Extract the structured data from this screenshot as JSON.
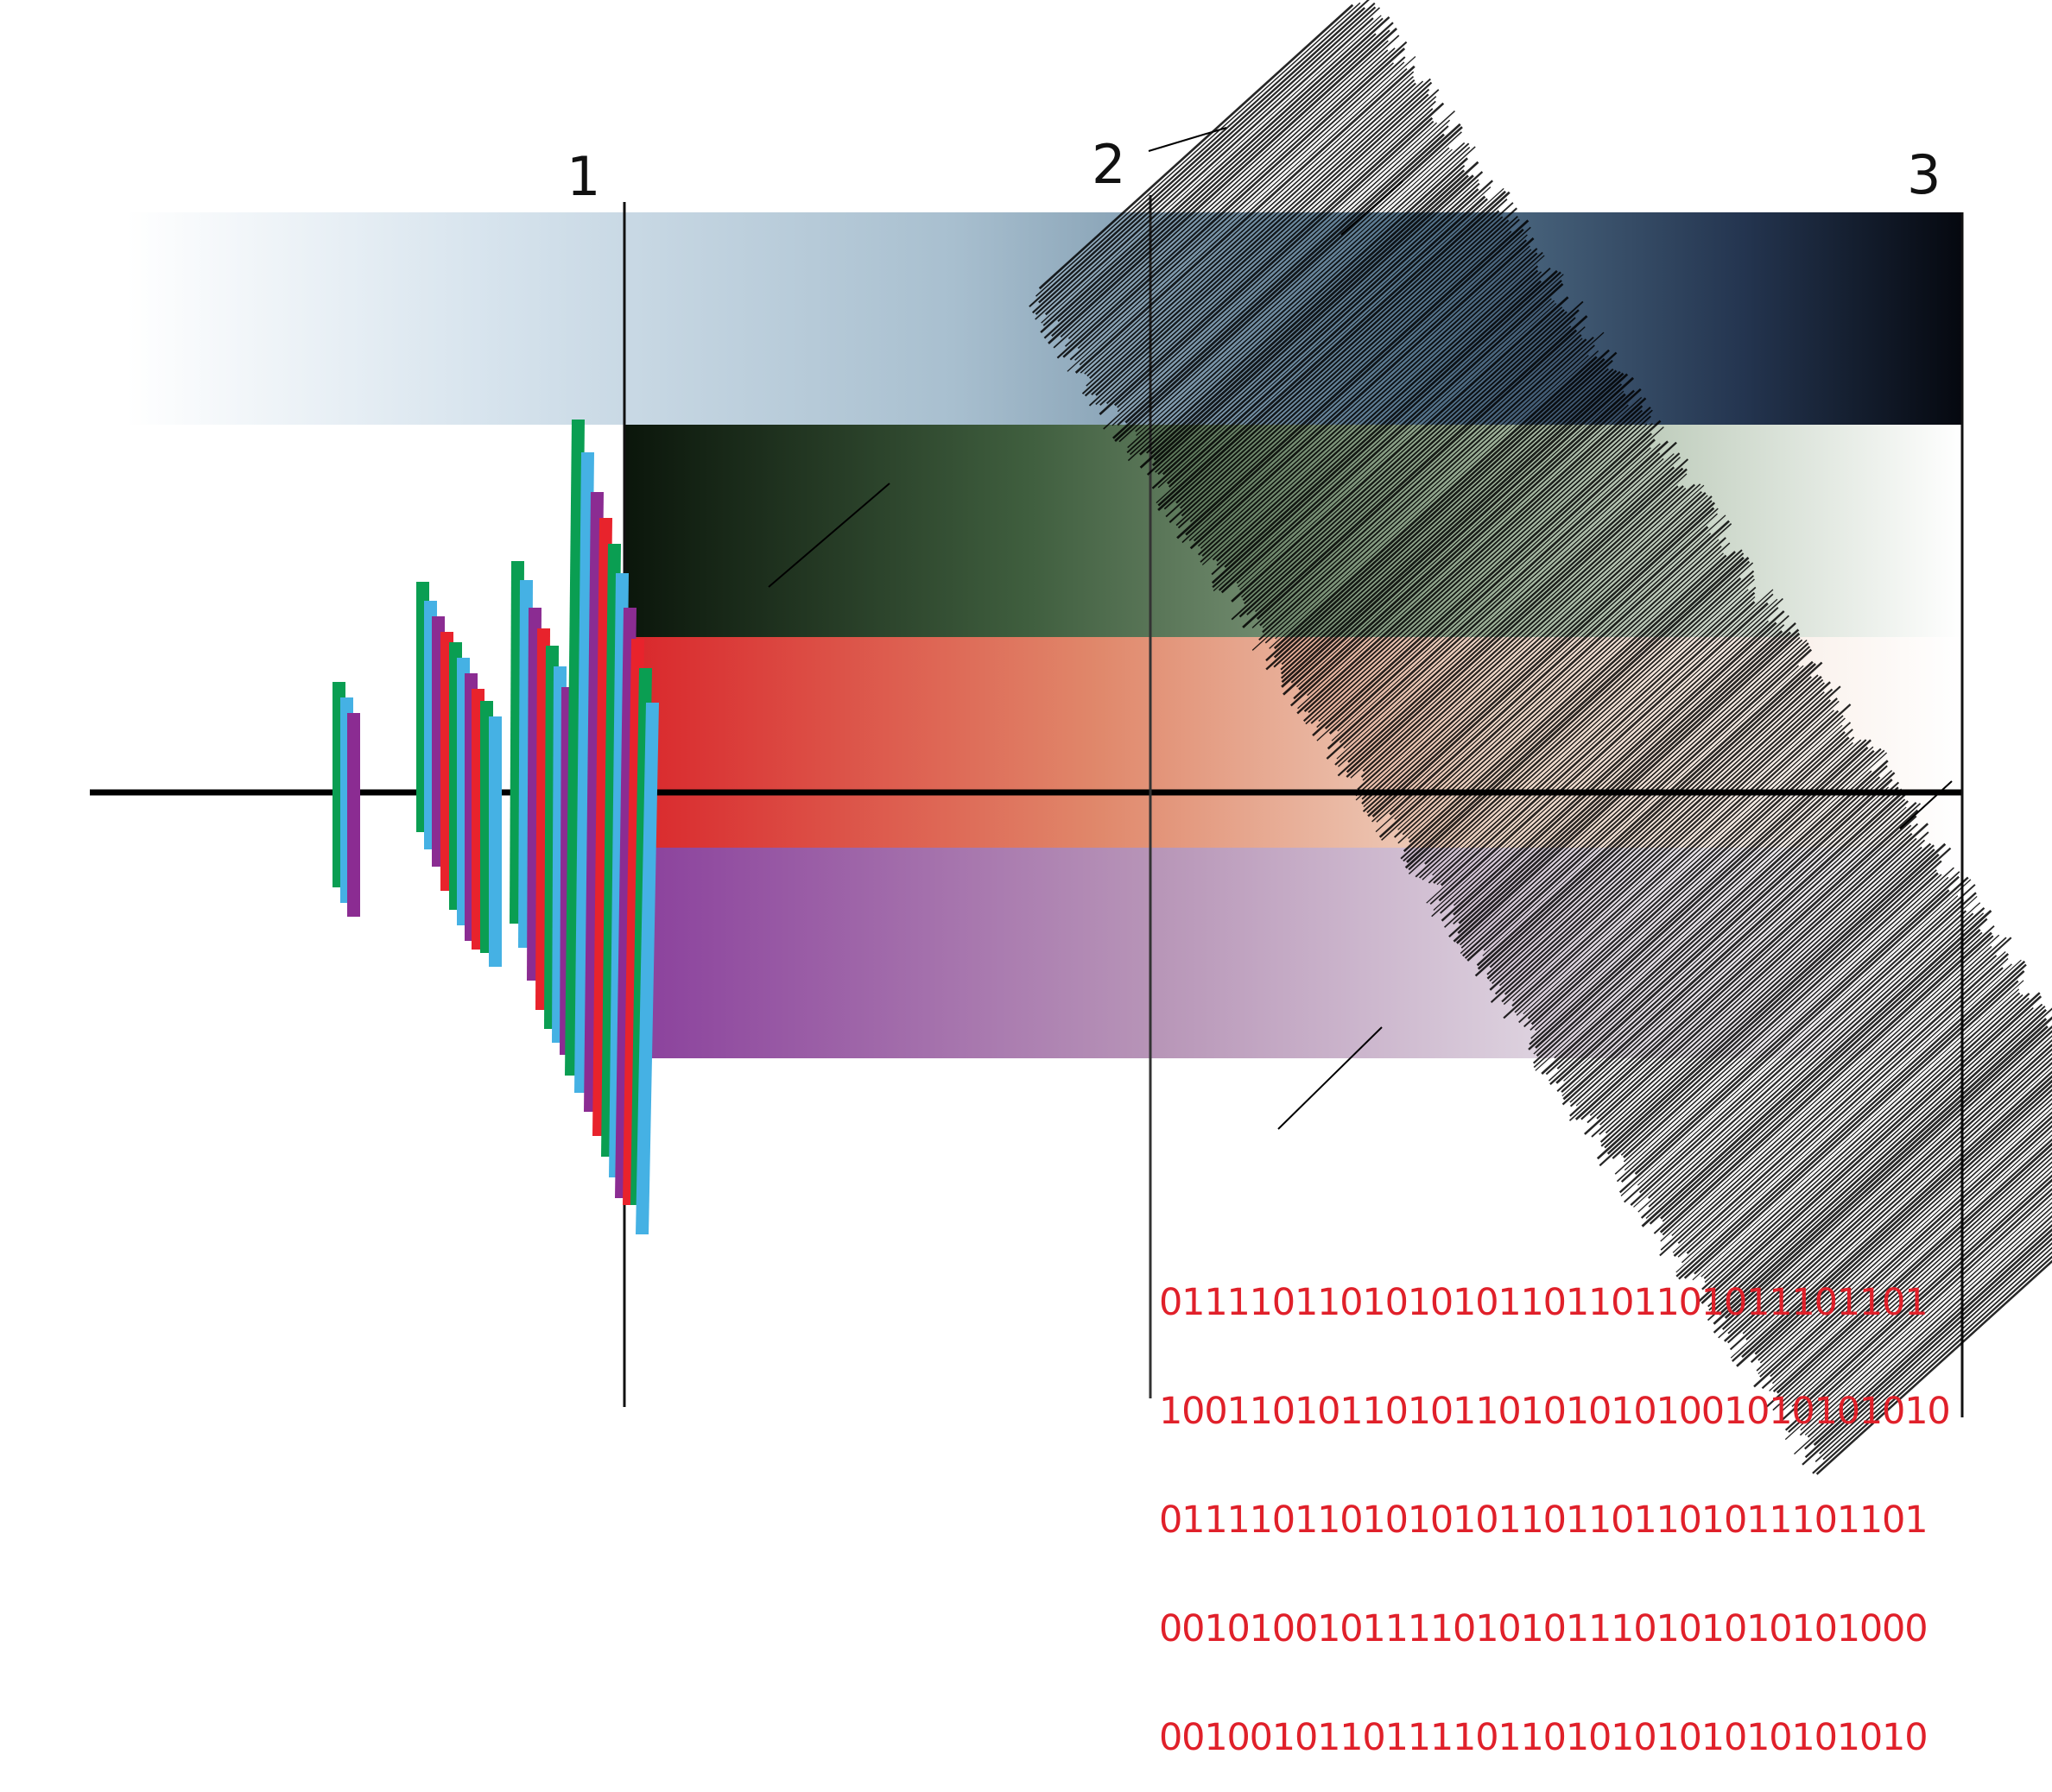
{
  "markers": [
    "1",
    "2",
    "3"
  ],
  "binary_lines": [
    "0111101101010101101101101011101101",
    "10011010110101101010101001010101010",
    "0111101101010101101101101011101101",
    "0010100101111010101110101010101000",
    "0010010110111101101010101010101010"
  ],
  "colors": {
    "band_blue_end": "#05080f",
    "band_green_start": "#0b160b",
    "band_red_start": "#d9262b",
    "band_purple_start": "#8a3f9c",
    "bar_green": "#0a9e52",
    "bar_blue": "#45b1e4",
    "bar_purple": "#8b2c92",
    "bar_red": "#e8232c",
    "binary_text": "#e0202a"
  }
}
